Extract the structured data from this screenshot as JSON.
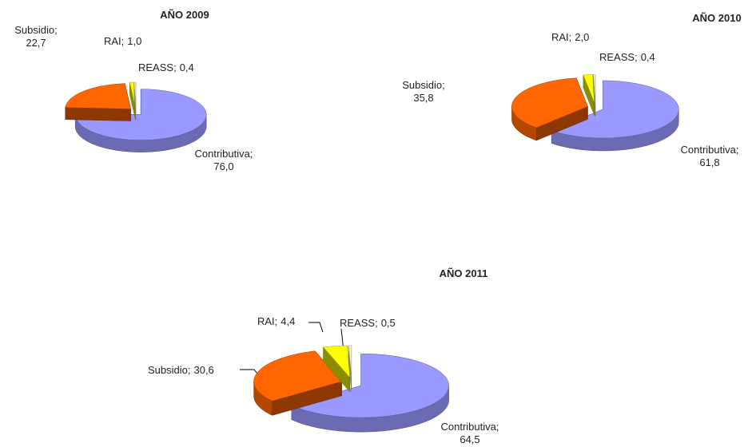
{
  "chart_data": [
    {
      "type": "pie3d",
      "title": "AÑO 2009",
      "categories": [
        "Contributiva;",
        "Subsidio;",
        "RAI;",
        "REASS;"
      ],
      "values": [
        76.0,
        22.7,
        1.0,
        0.4
      ],
      "value_labels": [
        "76,0",
        "22,7",
        "1,0",
        "0,4"
      ],
      "colors": [
        "#9999ff",
        "#ff6600",
        "#ffff00",
        "#ffffcc"
      ]
    },
    {
      "type": "pie3d",
      "title": "AÑO 2010",
      "categories": [
        "Contributiva;",
        "Subsidio;",
        "RAI;",
        "REASS;"
      ],
      "values": [
        61.8,
        35.8,
        2.0,
        0.4
      ],
      "value_labels": [
        "61,8",
        "35,8",
        "2,0",
        "0,4"
      ],
      "colors": [
        "#9999ff",
        "#ff6600",
        "#ffff00",
        "#ffffcc"
      ]
    },
    {
      "type": "pie3d",
      "title": "AÑO 2011",
      "categories": [
        "Contributiva;",
        "Subsidio;",
        "RAI;",
        "REASS;"
      ],
      "values": [
        64.5,
        30.6,
        4.4,
        0.5
      ],
      "value_labels": [
        "64,5",
        "30,6",
        "4,4",
        "0,5"
      ],
      "colors": [
        "#9999ff",
        "#ff6600",
        "#ffff00",
        "#ffffcc"
      ]
    }
  ]
}
